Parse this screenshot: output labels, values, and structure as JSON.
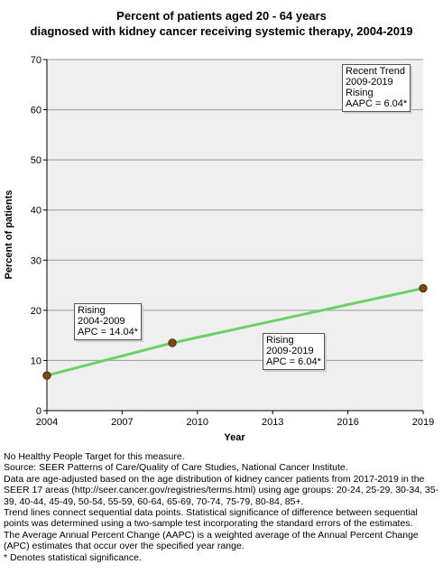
{
  "title": {
    "line1": "Percent of patients aged 20 - 64 years",
    "line2": "diagnosed with kidney cancer receiving systemic therapy, 2004-2019"
  },
  "chart_data": {
    "type": "line",
    "xlabel": "Year",
    "ylabel": "Percent of patients",
    "xlim": [
      2004,
      2019
    ],
    "ylim": [
      0,
      70
    ],
    "x_ticks": [
      "2004",
      "2007",
      "2010",
      "2013",
      "2016",
      "2019"
    ],
    "y_ticks": [
      "0",
      "10",
      "20",
      "30",
      "40",
      "50",
      "60",
      "70"
    ],
    "grid": true,
    "series": [
      {
        "x": [
          2004,
          2009,
          2019
        ],
        "y": [
          7.0,
          13.5,
          24.4
        ]
      }
    ],
    "line_color": "#6cd066",
    "marker_color": "#7a4a12",
    "annotations": [
      {
        "lines": [
          "Recent Trend",
          "2009-2019",
          "Rising",
          "AAPC =  6.04*"
        ]
      },
      {
        "lines": [
          "Rising",
          "2004-2009",
          "APC = 14.04*"
        ]
      },
      {
        "lines": [
          "Rising",
          "2009-2019",
          "APC =  6.04*"
        ]
      }
    ]
  },
  "footnotes": [
    "No Healthy People Target for this measure.",
    "Source: SEER Patterns of Care/Quality of Care Studies, National Cancer Institute.",
    "Data are age-adjusted based on the age distribution of kidney cancer patients from 2017-2019 in the SEER 17 areas (http://seer.cancer.gov/registries/terms.html) using age groups: 20-24, 25-29, 30-34, 35-39, 40-44, 45-49, 50-54, 55-59, 60-64, 65-69, 70-74, 75-79, 80-84, 85+.",
    "Trend lines connect sequential data points. Statistical significance of difference between sequential points was determined using a two-sample test incorporating the standard errors of the estimates.",
    "The Average Annual Percent Change (AAPC) is a weighted average of the Annual Percent Change (APC) estimates that occur over the specified year range.",
    "* Denotes statistical significance."
  ]
}
